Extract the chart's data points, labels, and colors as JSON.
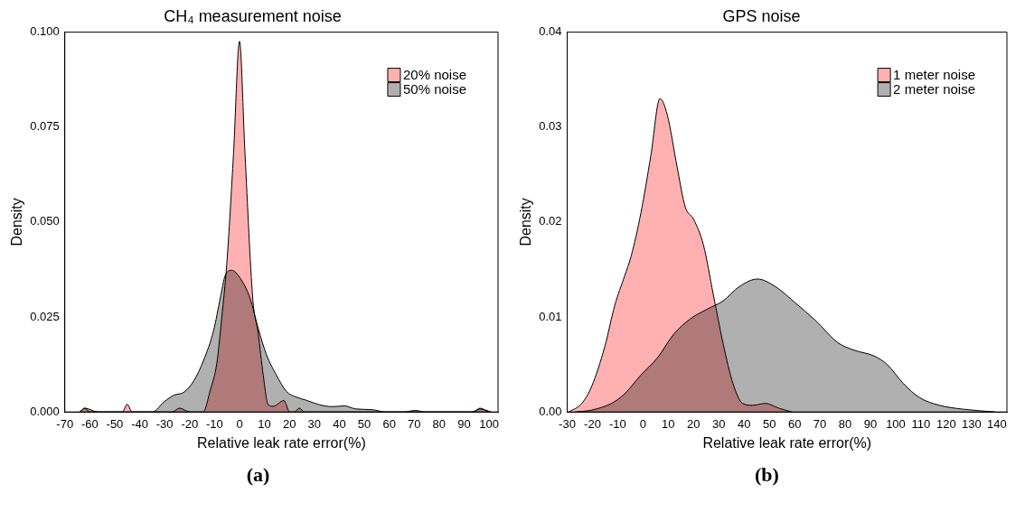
{
  "chart_data": [
    {
      "type": "area",
      "title": "CH₄ measurement noise",
      "xlabel": "Relative leak rate error(%)",
      "ylabel": "Density",
      "legend": "top right",
      "annotations": [
        "(a)"
      ],
      "xlim": [
        -70,
        103.6
      ],
      "xticks": [
        -70,
        -60,
        -50,
        -40,
        -30,
        -20,
        -10,
        0,
        10,
        20,
        30,
        40,
        50,
        60,
        70,
        80,
        90,
        100
      ],
      "ylim": [
        0,
        0.1
      ],
      "yticks": [
        {
          "value": 0,
          "label": "0.000"
        },
        {
          "value": 0.025,
          "label": "0.025"
        },
        {
          "value": 0.05,
          "label": "0.050"
        },
        {
          "value": 0.075,
          "label": "0.075"
        },
        {
          "value": 0.1,
          "label": "0.100"
        }
      ],
      "series": [
        {
          "name": "20% noise",
          "color": "#ffb1b1",
          "x": [
            -64,
            -62,
            -60,
            -47,
            -45,
            -43,
            -27,
            -24,
            -20,
            -14.6,
            -11.7,
            -9.1,
            -7.1,
            -5.1,
            -2.4,
            0,
            2.2,
            5.3,
            7.5,
            9.5,
            11.5,
            13.5,
            17.8,
            20.1,
            22,
            24,
            26,
            94,
            96.3,
            99.6
          ],
          "values": [
            0,
            0.001,
            0,
            0,
            0.002,
            0,
            0,
            0.001,
            0,
            0,
            0.0058,
            0.0128,
            0.025,
            0.039,
            0.068,
            0.0976,
            0.068,
            0.03,
            0.0206,
            0.0097,
            0.0019,
            0.0015,
            0.003,
            0,
            0,
            0.001,
            0,
            0,
            0.001,
            0
          ]
        },
        {
          "name": "50% noise",
          "color": "#b0b0b0",
          "x": [
            -64,
            -62,
            -56.7,
            -34.9,
            -30.2,
            -26.3,
            -22.3,
            -18.3,
            -14.4,
            -10.4,
            -7.7,
            -5.7,
            -3.1,
            0.2,
            4.2,
            7.5,
            10.8,
            14.8,
            18.8,
            22.8,
            26.7,
            32,
            37.3,
            42,
            46.6,
            53.2,
            58.5,
            66,
            70.4,
            74.4,
            93,
            96.3,
            100.9
          ],
          "values": [
            0,
            0.001,
            0,
            0,
            0.0027,
            0.0044,
            0.0052,
            0.0082,
            0.0136,
            0.0214,
            0.03,
            0.036,
            0.0373,
            0.0353,
            0.03,
            0.022,
            0.0151,
            0.0097,
            0.0054,
            0.0039,
            0.0031,
            0.0019,
            0.0014,
            0.0016,
            0.0008,
            0.0006,
            0,
            0,
            0.0004,
            0,
            0,
            0.0008,
            0
          ]
        }
      ]
    },
    {
      "type": "area",
      "title": "GPS noise",
      "xlabel": "Relative leak rate error(%)",
      "ylabel": "Density",
      "legend": "top right",
      "annotations": [
        "(b)"
      ],
      "xlim": [
        -30,
        144
      ],
      "xticks": [
        -30,
        -20,
        -10,
        0,
        10,
        20,
        30,
        40,
        50,
        60,
        70,
        80,
        90,
        100,
        110,
        120,
        130,
        140
      ],
      "ylim": [
        0,
        0.04
      ],
      "yticks": [
        {
          "value": 0,
          "label": "0.00"
        },
        {
          "value": 0.01,
          "label": "0.01"
        },
        {
          "value": 0.02,
          "label": "0.02"
        },
        {
          "value": 0.03,
          "label": "0.03"
        },
        {
          "value": 0.04,
          "label": "0.04"
        }
      ],
      "series": [
        {
          "name": "1 meter noise",
          "color": "#ffb1b1",
          "x": [
            -29.4,
            -24.2,
            -20.3,
            -15.1,
            -11.2,
            -7.3,
            -4.7,
            -0.8,
            3.1,
            6.7,
            9.6,
            13.5,
            16.7,
            20,
            23.9,
            27.8,
            31.7,
            35.6,
            39.4,
            43.3,
            48.5,
            53.7,
            58.9
          ],
          "values": [
            0,
            0.0009,
            0.0027,
            0.0069,
            0.0112,
            0.0143,
            0.0164,
            0.021,
            0.027,
            0.033,
            0.0313,
            0.0258,
            0.0216,
            0.0203,
            0.0176,
            0.0124,
            0.0072,
            0.003,
            0.0009,
            0.0007,
            0.0009,
            0.0004,
            0
          ]
        },
        {
          "name": "2 meter noise",
          "color": "#b0b0b0",
          "x": [
            -26.8,
            -20.3,
            -12.5,
            -7.3,
            -0.8,
            5.7,
            12.2,
            18.7,
            25.2,
            31.7,
            38.1,
            45.3,
            52.4,
            60.2,
            68,
            77.1,
            83.6,
            91.4,
            96.6,
            103,
            109.5,
            117.3,
            126.4,
            139.4
          ],
          "values": [
            0,
            0.0002,
            0.0009,
            0.0019,
            0.0039,
            0.0057,
            0.0082,
            0.0098,
            0.0108,
            0.0117,
            0.0132,
            0.014,
            0.0132,
            0.0115,
            0.0097,
            0.0073,
            0.0065,
            0.0059,
            0.005,
            0.003,
            0.0015,
            0.0007,
            0.0003,
            0
          ]
        }
      ]
    }
  ]
}
